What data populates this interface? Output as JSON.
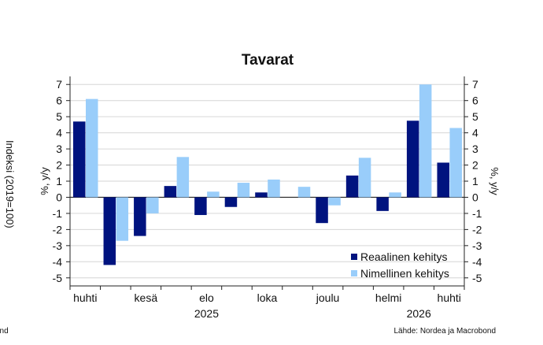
{
  "chart_data": {
    "type": "bar",
    "title": "Tavarat",
    "ylabel_left": "%, y/y",
    "ylabel_right": "%, y/y",
    "ylim": [
      -5.5,
      7.5
    ],
    "yticks": [
      -5,
      -4,
      -3,
      -2,
      -1,
      0,
      1,
      2,
      3,
      4,
      5,
      6,
      7
    ],
    "categories": [
      "2025-04",
      "2025-05",
      "2025-06",
      "2025-07",
      "2025-08",
      "2025-09",
      "2025-10",
      "2025-11",
      "2025-12",
      "2026-01",
      "2026-02",
      "2026-03",
      "2026-04"
    ],
    "x_tick_labels": [
      {
        "index": 0,
        "label": "huhti"
      },
      {
        "index": 2,
        "label": "kesä"
      },
      {
        "index": 4,
        "label": "elo"
      },
      {
        "index": 6,
        "label": "loka"
      },
      {
        "index": 8,
        "label": "joulu"
      },
      {
        "index": 10,
        "label": "helmi"
      },
      {
        "index": 12,
        "label": "huhti"
      }
    ],
    "year_labels": [
      {
        "index": 4,
        "label": "2025"
      },
      {
        "index": 11,
        "label": "2026"
      }
    ],
    "series": [
      {
        "name": "Reaalinen kehitys",
        "color": "#00137f",
        "values": [
          4.7,
          -4.2,
          -2.4,
          0.7,
          -1.1,
          -0.6,
          0.3,
          0.0,
          -1.6,
          1.35,
          -0.85,
          4.75,
          2.15
        ]
      },
      {
        "name": "Nimellinen kehitys",
        "color": "#99cdfa",
        "values": [
          6.1,
          -2.7,
          -1.0,
          2.5,
          0.35,
          0.9,
          1.1,
          0.65,
          -0.5,
          2.45,
          0.3,
          7.0,
          4.3
        ]
      }
    ],
    "legend_position": "bottom-right",
    "grid": true
  },
  "source": "Lähde: Nordea ja Macrobond",
  "cut_off": {
    "left_axis_text": "Indeksi (2019=100)",
    "bottom_left_text": "ond"
  }
}
